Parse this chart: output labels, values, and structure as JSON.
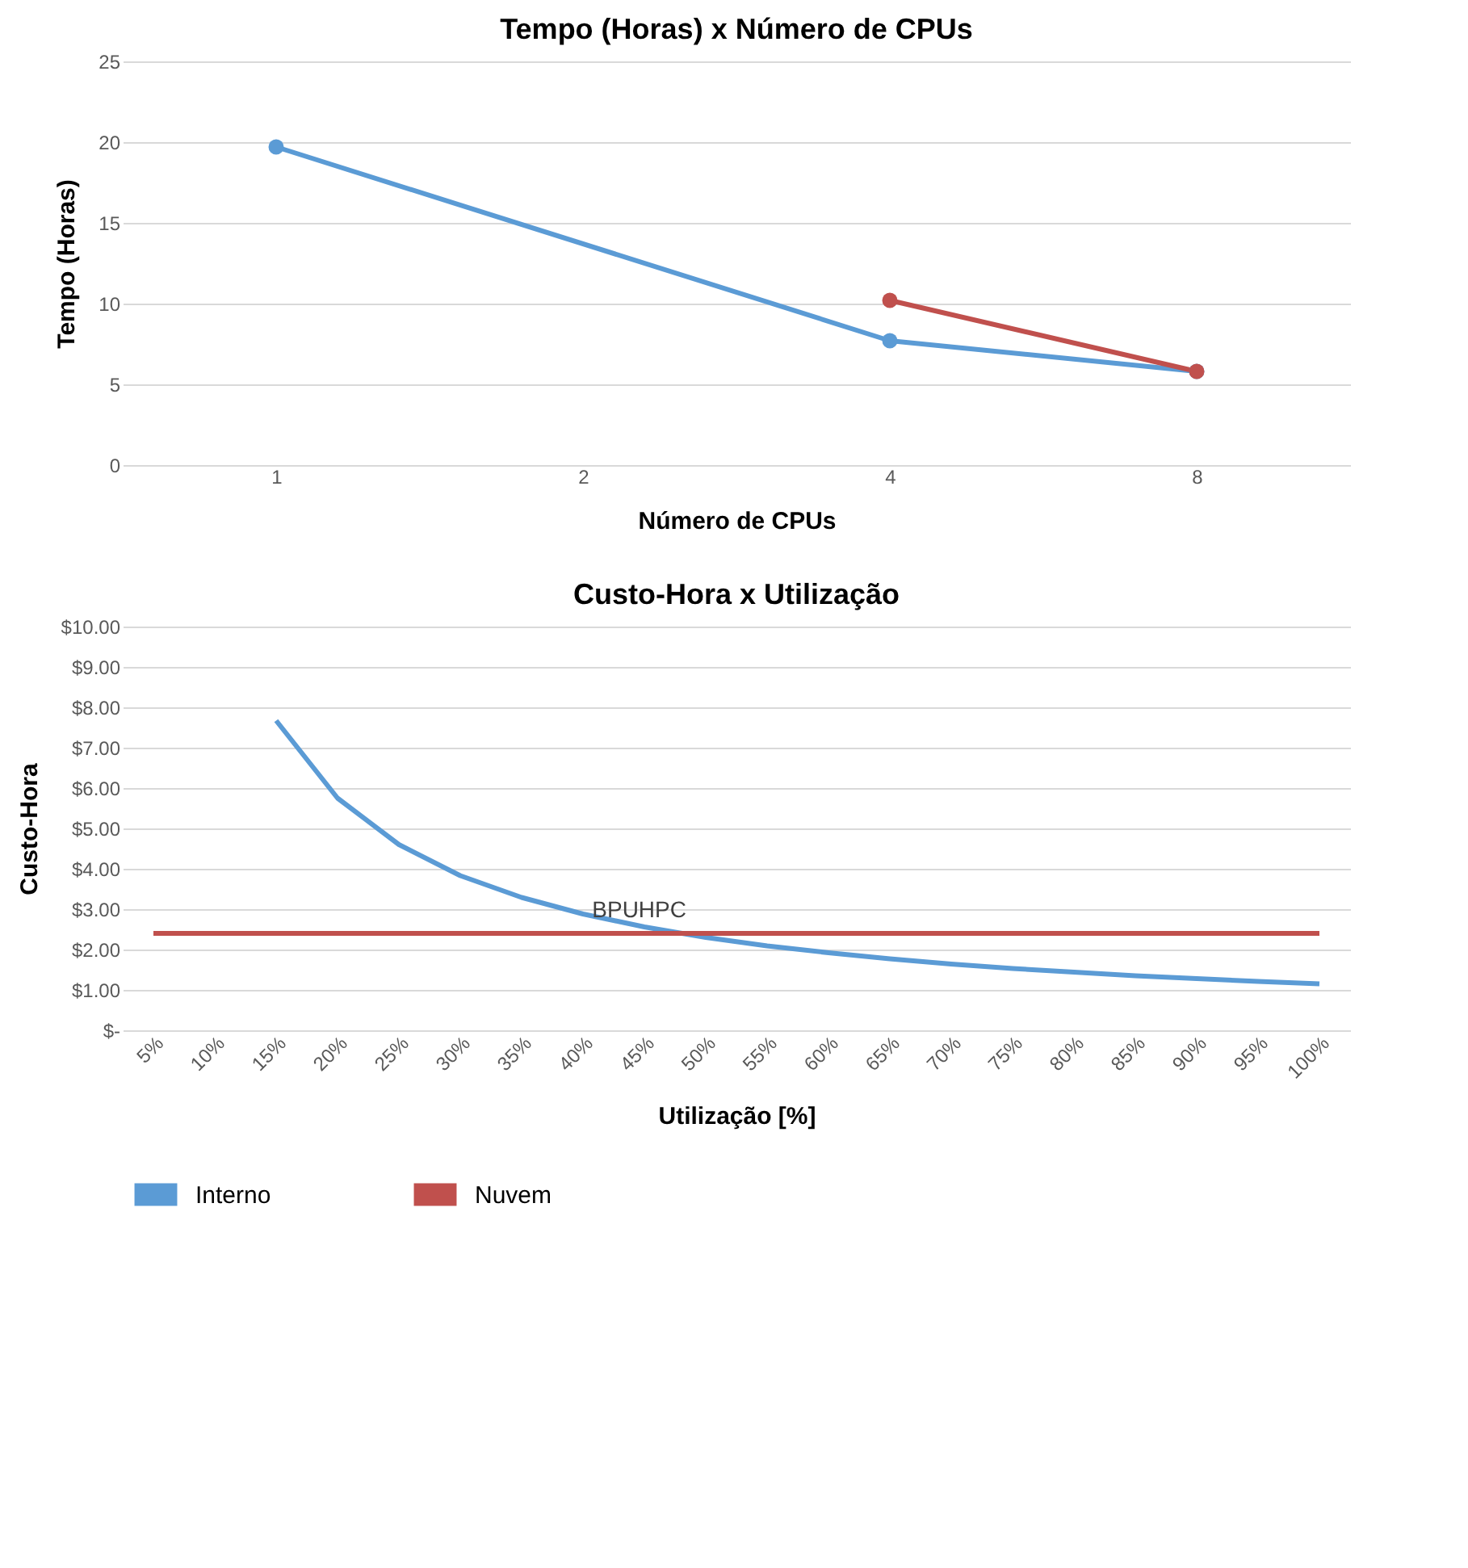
{
  "chart_data": [
    {
      "type": "line",
      "title": "Tempo (Horas) x Número de CPUs",
      "xlabel": "Número de CPUs",
      "ylabel": "Tempo (Horas)",
      "categories": [
        "1",
        "2",
        "4",
        "8"
      ],
      "series": [
        {
          "color": "#5b9bd5",
          "values": [
            19.7,
            null,
            7.7,
            5.8
          ]
        },
        {
          "color": "#c0504d",
          "values": [
            null,
            null,
            10.2,
            5.8
          ]
        }
      ],
      "ylim": [
        0,
        25
      ],
      "yticks": [
        0,
        5,
        10,
        15,
        20,
        25
      ],
      "grid": "y",
      "marker": "circle"
    },
    {
      "type": "line",
      "title": "Custo-Hora x Utilização",
      "xlabel": "Utilização [%]",
      "ylabel": "Custo-Hora",
      "categories": [
        "5%",
        "10%",
        "15%",
        "20%",
        "25%",
        "30%",
        "35%",
        "40%",
        "45%",
        "50%",
        "55%",
        "60%",
        "65%",
        "70%",
        "75%",
        "80%",
        "85%",
        "90%",
        "95%",
        "100%"
      ],
      "series": [
        {
          "name": "Interno",
          "color": "#5b9bd5",
          "values": [
            null,
            null,
            7.67,
            5.75,
            4.6,
            3.83,
            3.29,
            2.88,
            2.56,
            2.3,
            2.09,
            1.92,
            1.77,
            1.64,
            1.53,
            1.44,
            1.35,
            1.28,
            1.21,
            1.15
          ]
        },
        {
          "name": "Nuvem",
          "color": "#c0504d",
          "values": [
            2.4,
            2.4,
            2.4,
            2.4,
            2.4,
            2.4,
            2.4,
            2.4,
            2.4,
            2.4,
            2.4,
            2.4,
            2.4,
            2.4,
            2.4,
            2.4,
            2.4,
            2.4,
            2.4,
            2.4
          ]
        }
      ],
      "ylim": [
        0,
        10
      ],
      "yticks": [
        {
          "value": 0,
          "label": "$-"
        },
        {
          "value": 1,
          "label": "$1.00"
        },
        {
          "value": 2,
          "label": "$2.00"
        },
        {
          "value": 3,
          "label": "$3.00"
        },
        {
          "value": 4,
          "label": "$4.00"
        },
        {
          "value": 5,
          "label": "$5.00"
        },
        {
          "value": 6,
          "label": "$6.00"
        },
        {
          "value": 7,
          "label": "$7.00"
        },
        {
          "value": 8,
          "label": "$8.00"
        },
        {
          "value": 9,
          "label": "$9.00"
        },
        {
          "value": 10,
          "label": "$10.00"
        }
      ],
      "annotations": [
        {
          "text": "BPUHPC",
          "x": "50%",
          "y": 2.4
        }
      ],
      "grid": "y",
      "marker": "none",
      "legend": "bottom"
    }
  ]
}
